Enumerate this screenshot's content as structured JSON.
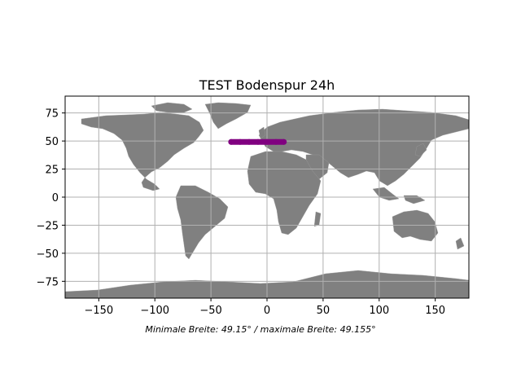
{
  "map": {
    "title": "TEST Bodenspur 24h",
    "footnote": "Minimale Breite: 49.15° / maximale Breite: 49.155°",
    "projection": "plate-carree",
    "grid": true,
    "land_color": "#808080",
    "ocean_color": "#ffffff",
    "grid_color": "#b0b0b0",
    "track_color": "#800080"
  },
  "chart_data": {
    "type": "scatter",
    "title": "TEST Bodenspur 24h",
    "xlim": [
      -180,
      180
    ],
    "ylim": [
      -90,
      90
    ],
    "xticks": [
      -150,
      -100,
      -50,
      0,
      50,
      100,
      150
    ],
    "yticks": [
      75,
      50,
      25,
      0,
      -25,
      -50,
      -75
    ],
    "xtick_labels": [
      "−150",
      "−100",
      "−50",
      "0",
      "50",
      "100",
      "150"
    ],
    "ytick_labels": [
      "75",
      "50",
      "25",
      "0",
      "−25",
      "−50",
      "−75"
    ],
    "series": [
      {
        "color": "#800080",
        "x": [
          -32,
          -24,
          -16,
          -8,
          0,
          8,
          15
        ],
        "y": [
          49.15,
          49.151,
          49.152,
          49.153,
          49.154,
          49.155,
          49.155
        ]
      }
    ]
  }
}
